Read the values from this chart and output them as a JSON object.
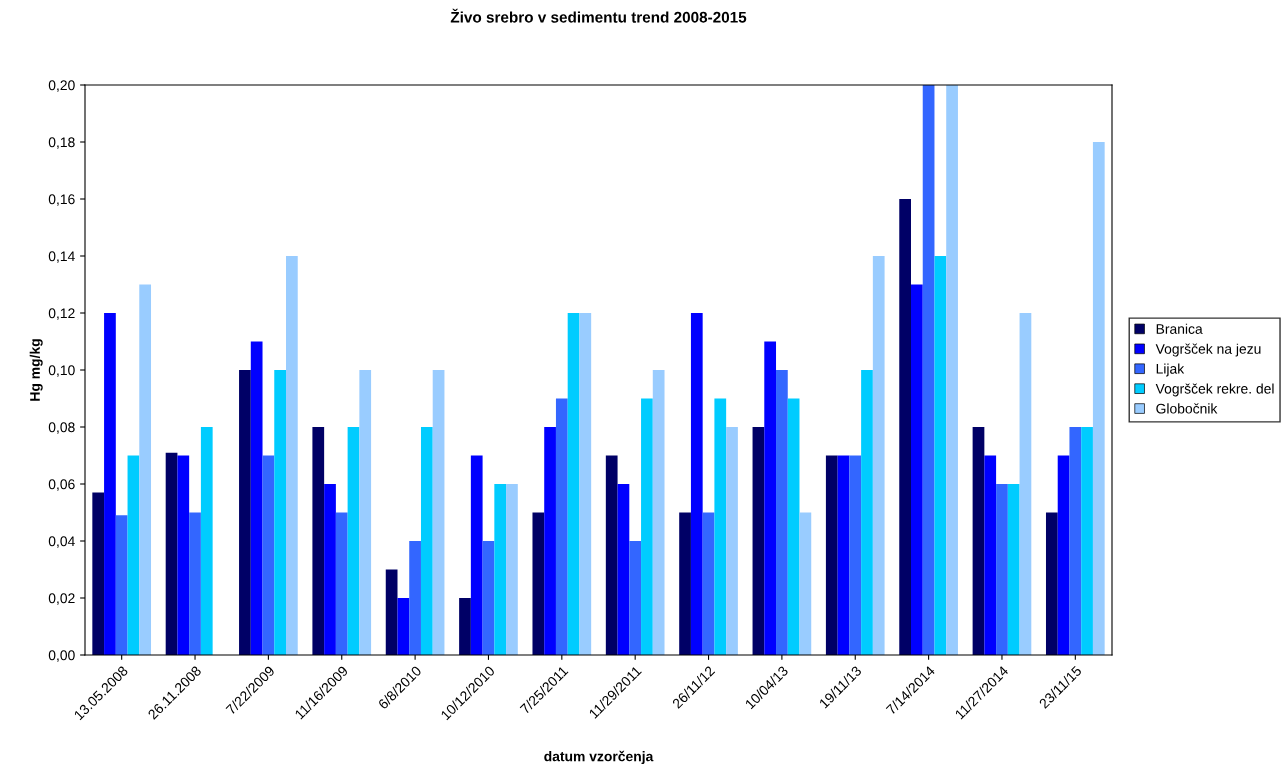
{
  "chart_data": {
    "type": "bar",
    "title": "Živo srebro v sedimentu trend 2008-2015",
    "xlabel": "datum vzorčenja",
    "ylabel": "Hg mg/kg",
    "categories": [
      "13.05.2008",
      "26.11.2008",
      "7/22/2009",
      "11/16/2009",
      "6/8/2010",
      "10/12/2010",
      "7/25/2011",
      "11/29/2011",
      "26/11/12",
      "10/04/13",
      "19/11/13",
      "7/14/2014",
      "11/27/2014",
      "23/11/15"
    ],
    "series": [
      {
        "name": "Branica",
        "color": "#000066",
        "values": [
          0.057,
          0.071,
          0.1,
          0.08,
          0.03,
          0.02,
          0.05,
          0.07,
          0.05,
          0.08,
          0.07,
          0.16,
          0.08,
          0.05
        ]
      },
      {
        "name": "Vogršček na jezu",
        "color": "#0000ff",
        "values": [
          0.12,
          0.07,
          0.11,
          0.06,
          0.02,
          0.07,
          0.08,
          0.06,
          0.12,
          0.11,
          0.07,
          0.13,
          0.07,
          0.07
        ]
      },
      {
        "name": "Lijak",
        "color": "#3366ff",
        "values": [
          0.049,
          0.05,
          0.07,
          0.05,
          0.04,
          0.04,
          0.09,
          0.04,
          0.05,
          0.1,
          0.07,
          0.2,
          0.06,
          0.08
        ]
      },
      {
        "name": "Vogršček rekre. del",
        "color": "#00ccff",
        "values": [
          0.07,
          0.08,
          0.1,
          0.08,
          0.08,
          0.06,
          0.12,
          0.09,
          0.09,
          0.09,
          0.1,
          0.14,
          0.06,
          0.08
        ]
      },
      {
        "name": "Globočnik",
        "color": "#99ccff",
        "values": [
          0.13,
          null,
          0.14,
          0.1,
          0.1,
          0.06,
          0.12,
          0.1,
          0.08,
          0.05,
          0.14,
          0.2,
          0.12,
          0.18
        ]
      }
    ],
    "ylim": [
      0,
      0.2
    ],
    "yticks": [
      {
        "value": 0,
        "label": "0,00"
      },
      {
        "value": 0.02,
        "label": "0,02"
      },
      {
        "value": 0.04,
        "label": "0,04"
      },
      {
        "value": 0.06,
        "label": "0,06"
      },
      {
        "value": 0.08,
        "label": "0,08"
      },
      {
        "value": 0.1,
        "label": "0,10"
      },
      {
        "value": 0.12,
        "label": "0,12"
      },
      {
        "value": 0.14,
        "label": "0,14"
      },
      {
        "value": 0.16,
        "label": "0,16"
      },
      {
        "value": 0.18,
        "label": "0,18"
      },
      {
        "value": 0.2,
        "label": "0,20"
      }
    ],
    "grid": false,
    "legend": "right"
  }
}
